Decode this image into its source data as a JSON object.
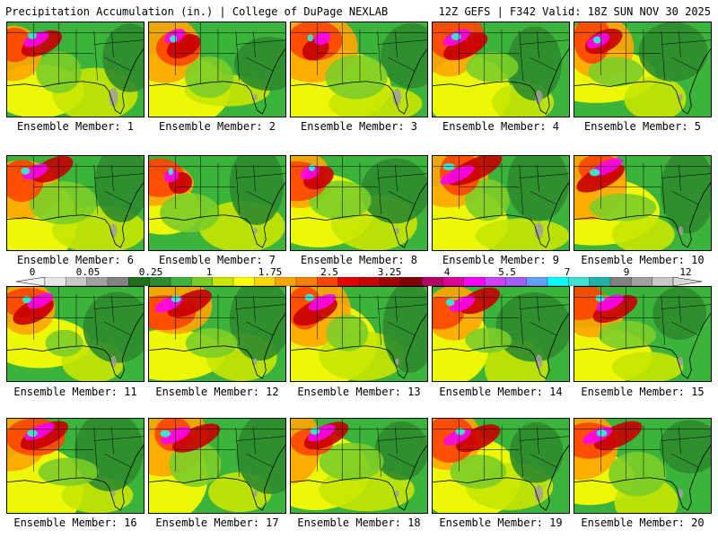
{
  "header": {
    "left": "Precipitation Accumulation (in.) | College of DuPage NEXLAB",
    "right": "12Z GEFS | F342 Valid: 18Z SUN NOV 30 2025"
  },
  "colors": {
    "palette": [
      "#e8e8e8",
      "#c8c8c8",
      "#a0a0a0",
      "#828282",
      "#1e6e1e",
      "#2e8b2e",
      "#3cb43c",
      "#7ccd28",
      "#c8e600",
      "#ffff00",
      "#ffd700",
      "#ffa500",
      "#ff7f00",
      "#ff4500",
      "#e60000",
      "#c80000",
      "#a00000",
      "#800000",
      "#b40064",
      "#dc0096",
      "#ff00ff",
      "#d040ff",
      "#a060ff",
      "#60a0ff",
      "#00ffff",
      "#40e0d0",
      "#20b2aa",
      "#808080",
      "#a0a0a0",
      "#c8c8c8"
    ]
  },
  "legend": {
    "labels": [
      "0",
      "0.05",
      "0.25",
      "1",
      "1.75",
      "2.5",
      "3.25",
      "4",
      "5.5",
      "7",
      "9",
      "12"
    ]
  },
  "panels": [
    {
      "label": "Ensemble Member: 1",
      "heavy": 0.55,
      "seed": 11,
      "dry": 0.7
    },
    {
      "label": "Ensemble Member: 2",
      "heavy": 0.45,
      "seed": 23,
      "dry": 0.2
    },
    {
      "label": "Ensemble Member: 3",
      "heavy": 0.35,
      "seed": 37,
      "dry": 0.6
    },
    {
      "label": "Ensemble Member: 4",
      "heavy": 0.6,
      "seed": 41,
      "dry": 0.5
    },
    {
      "label": "Ensemble Member: 5",
      "heavy": 0.5,
      "seed": 53,
      "dry": 0.2
    },
    {
      "label": "Ensemble Member: 6",
      "heavy": 0.55,
      "seed": 61,
      "dry": 0.5
    },
    {
      "label": "Ensemble Member: 7",
      "heavy": 0.3,
      "seed": 71,
      "dry": 0.2
    },
    {
      "label": "Ensemble Member: 8",
      "heavy": 0.4,
      "seed": 83,
      "dry": 0.2
    },
    {
      "label": "Ensemble Member: 9",
      "heavy": 0.75,
      "seed": 97,
      "dry": 0.6
    },
    {
      "label": "Ensemble Member: 10",
      "heavy": 0.65,
      "seed": 101,
      "dry": 0.3
    },
    {
      "label": "Ensemble Member: 11",
      "heavy": 0.55,
      "seed": 113,
      "dry": 0.4
    },
    {
      "label": "Ensemble Member: 12",
      "heavy": 0.6,
      "seed": 127,
      "dry": 0.2
    },
    {
      "label": "Ensemble Member: 13",
      "heavy": 0.6,
      "seed": 131,
      "dry": 0.2
    },
    {
      "label": "Ensemble Member: 14",
      "heavy": 0.55,
      "seed": 149,
      "dry": 0.5
    },
    {
      "label": "Ensemble Member: 15",
      "heavy": 0.6,
      "seed": 151,
      "dry": 0.3
    },
    {
      "label": "Ensemble Member: 16",
      "heavy": 0.65,
      "seed": 163,
      "dry": 0.2
    },
    {
      "label": "Ensemble Member: 17",
      "heavy": 0.65,
      "seed": 173,
      "dry": 0.2
    },
    {
      "label": "Ensemble Member: 18",
      "heavy": 0.6,
      "seed": 181,
      "dry": 0.2
    },
    {
      "label": "Ensemble Member: 19",
      "heavy": 0.6,
      "seed": 191,
      "dry": 0.6
    },
    {
      "label": "Ensemble Member: 20",
      "heavy": 0.65,
      "seed": 197,
      "dry": 0.3
    }
  ]
}
